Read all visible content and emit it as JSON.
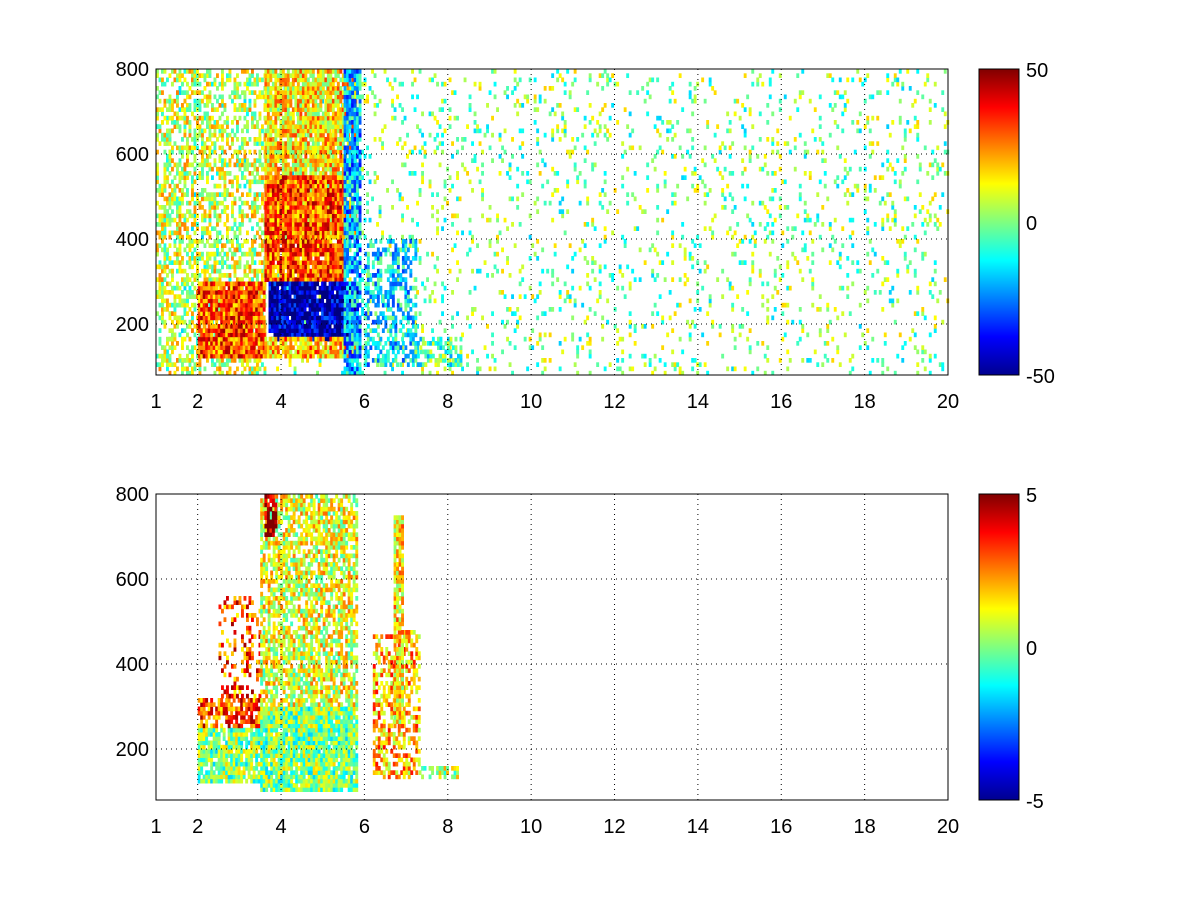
{
  "chart_data": [
    {
      "type": "heatmap",
      "title": "",
      "xlabel": "",
      "ylabel": "",
      "xlim": [
        1,
        20
      ],
      "ylim": [
        80,
        800
      ],
      "xticks": [
        1,
        2,
        4,
        6,
        8,
        10,
        12,
        14,
        16,
        18,
        20
      ],
      "yticks": [
        200,
        400,
        600,
        800
      ],
      "grid": true,
      "colormap": "jet",
      "clim": [
        -50,
        50
      ],
      "colorbar_ticks": [
        -50,
        0,
        50
      ],
      "regions": [
        {
          "x": [
            1,
            20
          ],
          "y": [
            80,
            800
          ],
          "value": 0,
          "density": 0.1
        },
        {
          "x": [
            1,
            3.6
          ],
          "y": [
            80,
            800
          ],
          "value": 8,
          "density": 0.45
        },
        {
          "x": [
            2,
            3.6
          ],
          "y": [
            120,
            300
          ],
          "value": 30,
          "density": 0.95
        },
        {
          "x": [
            3.6,
            5.8
          ],
          "y": [
            400,
            800
          ],
          "value": 15,
          "density": 0.9
        },
        {
          "x": [
            3.6,
            5.5
          ],
          "y": [
            300,
            550
          ],
          "value": 30,
          "density": 0.95
        },
        {
          "x": [
            3.7,
            5.8
          ],
          "y": [
            160,
            300
          ],
          "value": -45,
          "density": 0.95
        },
        {
          "x": [
            3.6,
            5.8
          ],
          "y": [
            120,
            170
          ],
          "value": 20,
          "density": 0.9
        },
        {
          "x": [
            5.5,
            5.9
          ],
          "y": [
            80,
            800
          ],
          "value": -20,
          "density": 0.8
        },
        {
          "x": [
            6,
            7.2
          ],
          "y": [
            100,
            400
          ],
          "value": -15,
          "density": 0.5
        },
        {
          "x": [
            7.2,
            8.3
          ],
          "y": [
            100,
            170
          ],
          "value": -5,
          "density": 0.5
        }
      ]
    },
    {
      "type": "heatmap",
      "title": "",
      "xlabel": "",
      "ylabel": "",
      "xlim": [
        1,
        20
      ],
      "ylim": [
        80,
        800
      ],
      "xticks": [
        1,
        2,
        4,
        6,
        8,
        10,
        12,
        14,
        16,
        18,
        20
      ],
      "yticks": [
        200,
        400,
        600,
        800
      ],
      "grid": true,
      "colormap": "jet",
      "clim": [
        -5,
        5
      ],
      "colorbar_ticks": [
        -5,
        0,
        5
      ],
      "regions": [
        {
          "x": [
            2,
            3.5
          ],
          "y": [
            120,
            250
          ],
          "value": 0,
          "density": 0.85
        },
        {
          "x": [
            2,
            3.5
          ],
          "y": [
            250,
            320
          ],
          "value": 3,
          "density": 0.7
        },
        {
          "x": [
            2.5,
            3.5
          ],
          "y": [
            320,
            560
          ],
          "value": 3,
          "density": 0.3
        },
        {
          "x": [
            3.5,
            5.8
          ],
          "y": [
            100,
            300
          ],
          "value": 0,
          "density": 0.95
        },
        {
          "x": [
            3.5,
            5.8
          ],
          "y": [
            300,
            800
          ],
          "value": 1,
          "density": 0.7
        },
        {
          "x": [
            3.6,
            3.9
          ],
          "y": [
            700,
            800
          ],
          "value": 5,
          "density": 0.8
        },
        {
          "x": [
            6.2,
            7.3
          ],
          "y": [
            130,
            480
          ],
          "value": 2,
          "density": 0.5
        },
        {
          "x": [
            6.7,
            6.9
          ],
          "y": [
            250,
            750
          ],
          "value": 1.5,
          "density": 0.9
        },
        {
          "x": [
            7.3,
            8.2
          ],
          "y": [
            130,
            160
          ],
          "value": 0.5,
          "density": 0.5
        }
      ]
    }
  ]
}
